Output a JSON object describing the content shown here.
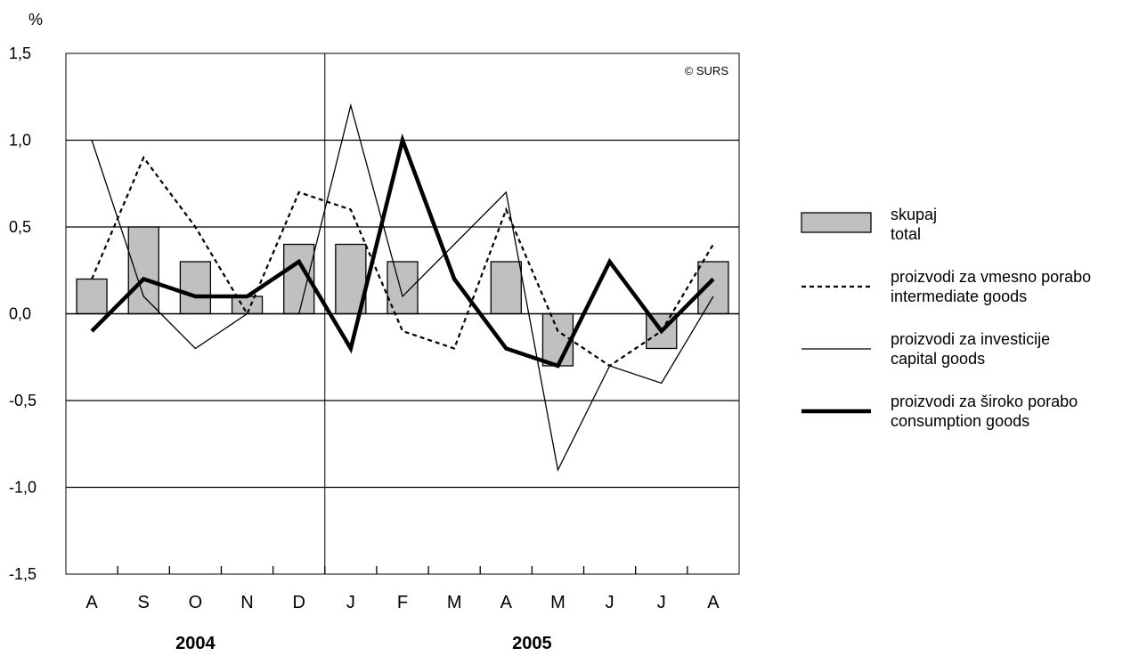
{
  "chart_data": {
    "type": "bar",
    "unit_label": "%",
    "source_note": "© SURS",
    "categories": [
      "A",
      "S",
      "O",
      "N",
      "D",
      "J",
      "F",
      "M",
      "A",
      "M",
      "J",
      "J",
      "A"
    ],
    "year_groups": [
      {
        "label": "2004",
        "from": 0,
        "to": 4
      },
      {
        "label": "2005",
        "from": 5,
        "to": 12
      }
    ],
    "ylim": [
      -1.5,
      1.5
    ],
    "yticks": [
      -1.5,
      -1.0,
      -0.5,
      0.0,
      0.5,
      1.0,
      1.5
    ],
    "ytick_labels": [
      "-1,5",
      "-1,0",
      "-0,5",
      "0,0",
      "0,5",
      "1,0",
      "1,5"
    ],
    "major_gridlines": [
      -1.0,
      -0.5,
      0.5,
      1.0
    ],
    "year_divider_after_index": 4,
    "series": [
      {
        "name": "skupaj",
        "name_en": "total",
        "kind": "bar",
        "color": "#c0c0c0",
        "values": [
          0.2,
          0.5,
          0.3,
          0.1,
          0.4,
          0.4,
          0.3,
          null,
          0.3,
          -0.3,
          null,
          -0.2,
          0.3
        ]
      },
      {
        "name": "proizvodi za vmesno porabo",
        "name_en": "intermediate goods",
        "kind": "line",
        "style": "dashed",
        "color": "#000000",
        "values": [
          0.2,
          0.9,
          0.5,
          0.0,
          0.7,
          0.6,
          -0.1,
          -0.2,
          0.6,
          -0.1,
          -0.3,
          -0.1,
          0.4
        ]
      },
      {
        "name": "proizvodi za investicije",
        "name_en": "capital goods",
        "kind": "line",
        "style": "thin",
        "color": "#000000",
        "values": [
          1.0,
          0.1,
          -0.2,
          0.0,
          0.0,
          1.2,
          0.1,
          0.4,
          0.7,
          -0.9,
          -0.3,
          -0.4,
          0.1
        ]
      },
      {
        "name": "proizvodi za široko porabo",
        "name_en": "consumption goods",
        "kind": "line",
        "style": "thick",
        "color": "#000000",
        "values": [
          -0.1,
          0.2,
          0.1,
          0.1,
          0.3,
          -0.2,
          1.0,
          0.2,
          -0.2,
          -0.3,
          0.3,
          -0.1,
          0.2
        ]
      }
    ],
    "legend_position": "right"
  }
}
